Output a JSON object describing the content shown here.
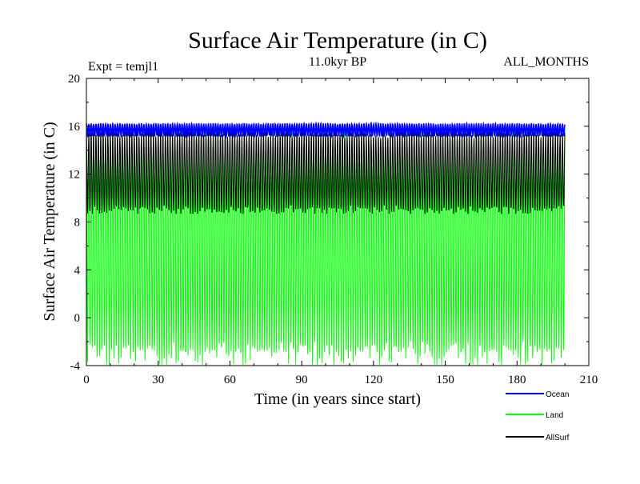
{
  "chart_data": {
    "type": "line",
    "title": "Surface Air Temperature (in C)",
    "subtitle": "11.0kyr BP",
    "left_note": "Expt = temjl1",
    "right_note": "ALL_MONTHS",
    "xlabel": "Time (in years since start)",
    "ylabel": "Surface Air Temperature (in C)",
    "xlim": [
      0,
      210
    ],
    "ylim": [
      -4,
      20
    ],
    "xticks": [
      0,
      30,
      60,
      90,
      120,
      150,
      180,
      210
    ],
    "yticks": [
      -4,
      0,
      4,
      8,
      12,
      16,
      20
    ],
    "x_end": 200,
    "series": [
      {
        "name": "Land",
        "color": "#00ff00",
        "seasonal_min": -3.0,
        "seasonal_max": 15.0
      },
      {
        "name": "AllSurf",
        "color": "#000000",
        "seasonal_min": 9.0,
        "seasonal_max": 15.4
      },
      {
        "name": "Ocean",
        "color": "#0000ff",
        "seasonal_min": 15.2,
        "seasonal_max": 16.2
      }
    ],
    "legend": [
      "Ocean",
      "Land",
      "AllSurf"
    ]
  }
}
